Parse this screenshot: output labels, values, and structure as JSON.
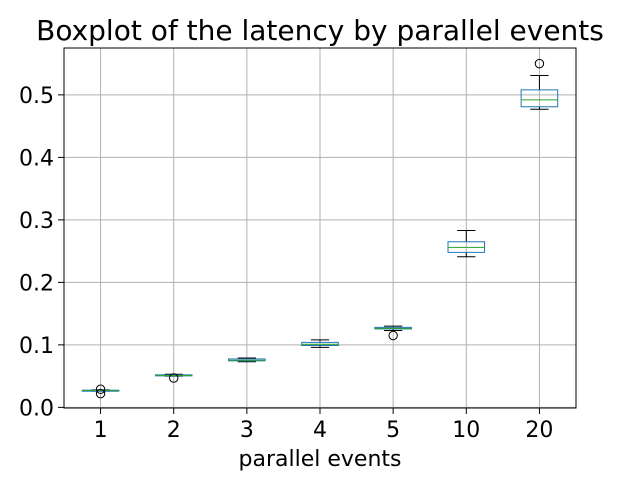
{
  "chart_data": {
    "type": "boxplot",
    "title": "Boxplot of the latency by parallel events",
    "xlabel": "parallel events",
    "ylabel": "",
    "categories": [
      "1",
      "2",
      "3",
      "4",
      "5",
      "10",
      "20"
    ],
    "ylim": [
      -0.001,
      0.575
    ],
    "yticks": [
      "0.0",
      "0.1",
      "0.2",
      "0.3",
      "0.4",
      "0.5"
    ],
    "grid": true,
    "box_color": "#1f77b4",
    "median_color": "#2ca02c",
    "whisker_color": "#000000",
    "boxes": [
      {
        "label": "1",
        "whislo": 0.026,
        "q1": 0.0265,
        "med": 0.027,
        "q3": 0.0275,
        "whishi": 0.028,
        "fliers": [
          0.022,
          0.029
        ]
      },
      {
        "label": "2",
        "whislo": 0.05,
        "q1": 0.0505,
        "med": 0.051,
        "q3": 0.052,
        "whishi": 0.053,
        "fliers": [
          0.047
        ]
      },
      {
        "label": "3",
        "whislo": 0.073,
        "q1": 0.0745,
        "med": 0.0755,
        "q3": 0.0775,
        "whishi": 0.079,
        "fliers": []
      },
      {
        "label": "4",
        "whislo": 0.096,
        "q1": 0.099,
        "med": 0.101,
        "q3": 0.104,
        "whishi": 0.108,
        "fliers": []
      },
      {
        "label": "5",
        "whislo": 0.123,
        "q1": 0.1255,
        "med": 0.1265,
        "q3": 0.128,
        "whishi": 0.13,
        "fliers": [
          0.115
        ]
      },
      {
        "label": "10",
        "whislo": 0.241,
        "q1": 0.248,
        "med": 0.256,
        "q3": 0.265,
        "whishi": 0.283,
        "fliers": []
      },
      {
        "label": "20",
        "whislo": 0.477,
        "q1": 0.481,
        "med": 0.492,
        "q3": 0.508,
        "whishi": 0.531,
        "fliers": [
          0.55
        ]
      }
    ]
  }
}
